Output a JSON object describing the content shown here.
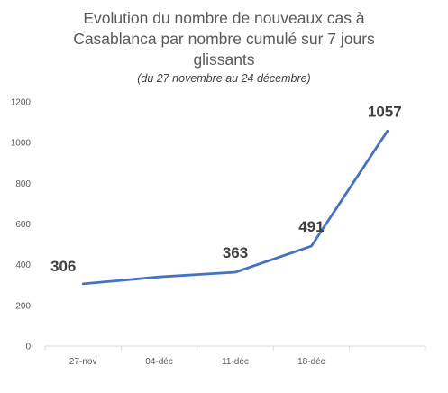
{
  "chart_data": {
    "type": "line",
    "title_lines": [
      "Evolution du nombre de nouveaux cas à",
      "Casablanca par nombre cumulé sur 7 jours",
      "glissants"
    ],
    "subtitle": "(du 27 novembre au 24 décembre)",
    "categories": [
      "27-nov",
      "04-déc",
      "11-déc",
      "18-déc",
      ""
    ],
    "values": [
      306,
      340,
      363,
      491,
      1057
    ],
    "data_labels": [
      "306",
      "",
      "363",
      "491",
      "1057"
    ],
    "ylim": [
      0,
      1200
    ],
    "yticks": [
      "0",
      "200",
      "400",
      "600",
      "800",
      "1000",
      "1200"
    ],
    "series_color": "#4472C4",
    "grid": false
  }
}
